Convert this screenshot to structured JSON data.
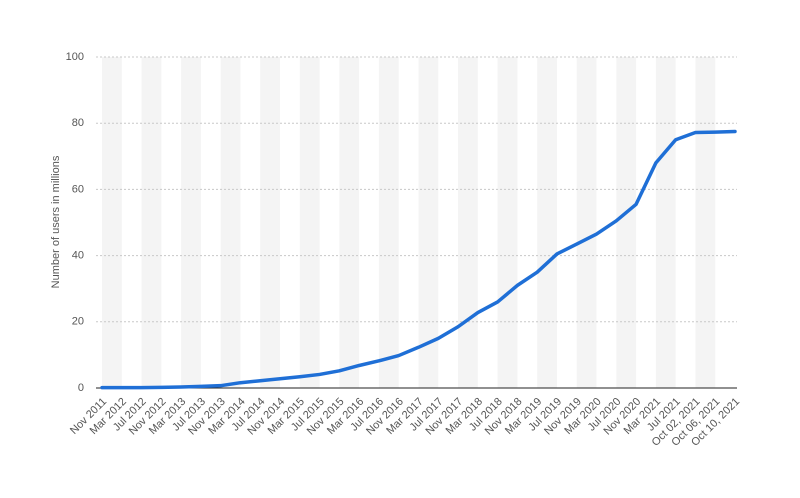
{
  "chart_data": {
    "type": "line",
    "y_label": "Number of users in millions",
    "categories": [
      "Nov 2011",
      "Mar 2012",
      "Jul 2012",
      "Nov 2012",
      "Mar 2013",
      "Jul 2013",
      "Nov 2013",
      "Mar 2014",
      "Jul 2014",
      "Nov 2014",
      "Mar 2015",
      "Jul 2015",
      "Nov 2015",
      "Mar 2016",
      "Jul 2016",
      "Nov 2016",
      "Mar 2017",
      "Jul 2017",
      "Nov 2017",
      "Mar 2018",
      "Jul 2018",
      "Nov 2018",
      "Mar 2019",
      "Jul 2019",
      "Nov 2019",
      "Mar 2020",
      "Jul 2020",
      "Nov 2020",
      "Mar 2021",
      "Jul 2021",
      "Oct 02, 2021",
      "Oct 06, 2021",
      "Oct 10, 2021"
    ],
    "series": [
      {
        "name": "Users",
        "color": "#1f6fd6",
        "values": [
          0.1,
          0.1,
          0.1,
          0.2,
          0.3,
          0.5,
          0.7,
          1.6,
          2.2,
          2.8,
          3.4,
          4.1,
          5.2,
          6.8,
          8.2,
          9.8,
          12.3,
          15,
          18.5,
          22.8,
          26,
          31,
          35,
          40.5,
          43.5,
          46.5,
          50.5,
          55.5,
          68,
          75,
          77.2,
          77.3,
          77.5
        ]
      }
    ],
    "ylim": [
      0,
      100
    ],
    "yticks": [
      0,
      20,
      40,
      60,
      80,
      100
    ],
    "grid": true
  }
}
